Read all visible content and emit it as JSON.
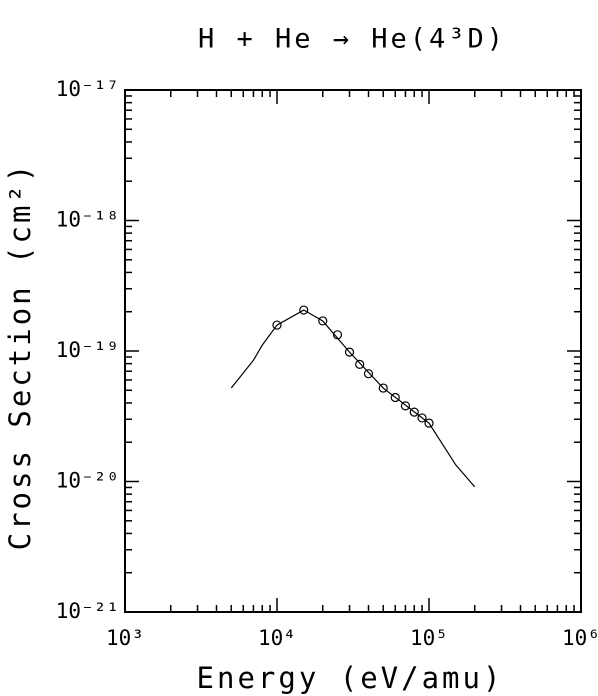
{
  "chart_data": {
    "type": "line",
    "title": "H + He → He(4³D)",
    "x_label": "Energy (eV/amu)",
    "y_label": "Cross Section (cm²)",
    "xlog": true,
    "ylog": true,
    "xlim": [
      1000,
      1000000
    ],
    "ylim": [
      1e-21,
      1e-17
    ],
    "xticks": [
      {
        "value": 1000,
        "label": "10³"
      },
      {
        "value": 10000,
        "label": "10⁴"
      },
      {
        "value": 100000,
        "label": "10⁵"
      },
      {
        "value": 1000000,
        "label": "10⁶"
      }
    ],
    "yticks": [
      {
        "value": 1e-21,
        "label": "10⁻²¹"
      },
      {
        "value": 1e-20,
        "label": "10⁻²⁰"
      },
      {
        "value": 1e-19,
        "label": "10⁻¹⁹"
      },
      {
        "value": 1e-18,
        "label": "10⁻¹⁸"
      },
      {
        "value": 1e-17,
        "label": "10⁻¹⁷"
      }
    ],
    "minor_ticks": true,
    "series": [
      {
        "kind": "line",
        "color": "#000000",
        "x": [
          5000,
          7000,
          8000,
          10000,
          15000,
          20000,
          30000,
          50000,
          100000,
          150000,
          200000
        ],
        "values": [
          5.2e-20,
          8.5e-20,
          1.11e-19,
          1.58e-19,
          2.06e-19,
          1.7e-19,
          9.8e-20,
          5.2e-20,
          2.8e-20,
          1.34e-20,
          9.1e-21
        ]
      },
      {
        "kind": "scatter",
        "color": "#000000",
        "x": [
          10000,
          15000,
          20000,
          25000,
          30000,
          35000,
          40000,
          50000,
          60000,
          70000,
          80000,
          90000,
          100000
        ],
        "values": [
          1.58e-19,
          2.06e-19,
          1.7e-19,
          1.33e-19,
          9.8e-20,
          7.9e-20,
          6.7e-20,
          5.2e-20,
          4.4e-20,
          3.8e-20,
          3.4e-20,
          3.07e-20,
          2.8e-20
        ]
      }
    ]
  }
}
